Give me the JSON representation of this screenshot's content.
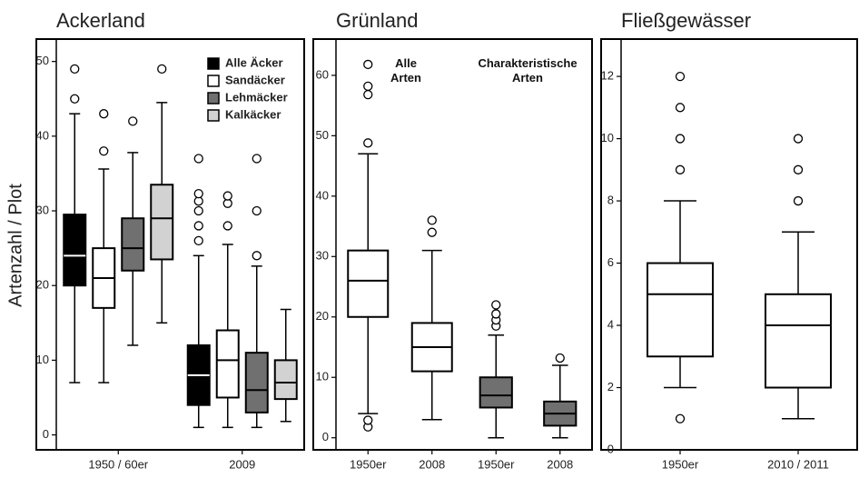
{
  "chart_data": [
    {
      "type": "box",
      "title": "Ackerland",
      "ylabel": "Artenzahl / Plot",
      "categories": [
        "1950 / 60er",
        "2009"
      ],
      "ylim": [
        -2,
        53
      ],
      "yticks": [
        0,
        10,
        20,
        30,
        40,
        50
      ],
      "series": [
        {
          "name": "Alle Äcker",
          "color": "#000000",
          "low": [
            7,
            1
          ],
          "q1": [
            20,
            4
          ],
          "median": [
            24,
            8
          ],
          "q3": [
            29.5,
            12
          ],
          "high": [
            43,
            24
          ],
          "outliers": [
            [
              45,
              49
            ],
            [
              26,
              28,
              30,
              31.3,
              32.3,
              37
            ]
          ]
        },
        {
          "name": "Sandäcker",
          "color": "#ffffff",
          "low": [
            7,
            1
          ],
          "q1": [
            17,
            5
          ],
          "median": [
            21,
            10
          ],
          "q3": [
            25,
            14
          ],
          "high": [
            35.6,
            25.5
          ],
          "outliers": [
            [
              38,
              43
            ],
            [
              28,
              31,
              32
            ]
          ]
        },
        {
          "name": "Lehmäcker",
          "color": "#707070",
          "low": [
            12,
            1
          ],
          "q1": [
            22,
            3
          ],
          "median": [
            25,
            6
          ],
          "q3": [
            29,
            11
          ],
          "high": [
            37.8,
            22.6
          ],
          "outliers": [
            [
              42
            ],
            [
              24,
              30,
              37
            ]
          ]
        },
        {
          "name": "Kalkäcker",
          "color": "#d2d2d2",
          "low": [
            15,
            1.8
          ],
          "q1": [
            23.5,
            4.8
          ],
          "median": [
            29,
            7
          ],
          "q3": [
            33.5,
            10
          ],
          "high": [
            44.5,
            16.8
          ],
          "outliers": [
            [
              49
            ],
            []
          ]
        }
      ]
    },
    {
      "type": "box",
      "title": "Grünland",
      "categories": [
        "1950er",
        "2008",
        "1950er",
        "2008"
      ],
      "annotations": [
        "Alle Arten",
        "Charakteristische Arten"
      ],
      "ylim": [
        -2,
        66
      ],
      "yticks": [
        0,
        10,
        20,
        30,
        40,
        50,
        60
      ],
      "series": [
        {
          "colors": [
            "#ffffff",
            "#ffffff",
            "#707070",
            "#707070"
          ],
          "low": [
            4,
            3,
            0,
            0
          ],
          "q1": [
            20,
            11,
            5,
            2
          ],
          "median": [
            26,
            15,
            7,
            4
          ],
          "q3": [
            31,
            19,
            10,
            6
          ],
          "high": [
            47,
            31,
            17,
            12
          ],
          "outliers": [
            [
              1.8,
              2.9,
              48.8,
              56.8,
              58.2,
              61.8
            ],
            [
              34,
              36
            ],
            [
              18.5,
              19.5,
              20.5,
              22
            ],
            [
              13.2
            ]
          ]
        }
      ]
    },
    {
      "type": "box",
      "title": "Fließgewässer",
      "categories": [
        "1950er",
        "2010 / 2011"
      ],
      "ylim": [
        0,
        13.2
      ],
      "yticks": [
        0,
        2,
        4,
        6,
        8,
        10,
        12
      ],
      "series": [
        {
          "color": "#ffffff",
          "low": [
            2,
            1
          ],
          "q1": [
            3,
            2
          ],
          "median": [
            5,
            4
          ],
          "q3": [
            6,
            5
          ],
          "high": [
            8,
            7
          ],
          "outliers": [
            [
              1,
              9,
              10,
              11,
              12
            ],
            [
              8,
              9,
              10
            ]
          ]
        }
      ]
    }
  ]
}
